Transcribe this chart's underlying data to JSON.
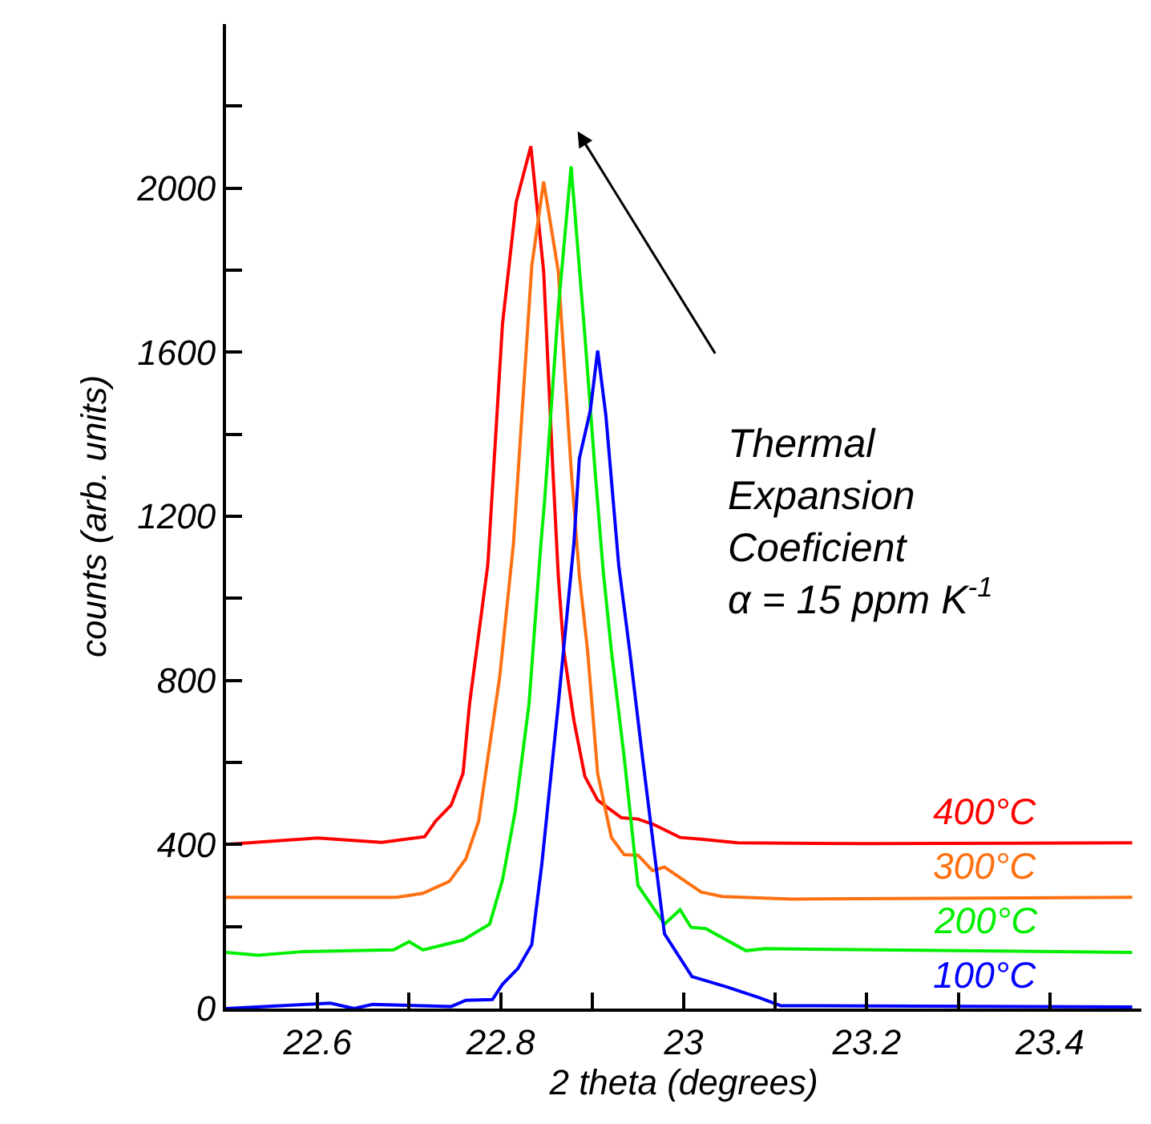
{
  "chart_data": {
    "type": "line",
    "xlabel": "2 theta (degrees)",
    "ylabel": "counts (arb. units)",
    "xlim": [
      22.5,
      23.5
    ],
    "ylim": [
      0,
      2400
    ],
    "xticks": [
      {
        "value": 22.6,
        "label": "22.6"
      },
      {
        "value": 22.7,
        "label": null
      },
      {
        "value": 22.8,
        "label": "22.8"
      },
      {
        "value": 22.9,
        "label": null
      },
      {
        "value": 23.0,
        "label": "23"
      },
      {
        "value": 23.1,
        "label": null
      },
      {
        "value": 23.2,
        "label": "23.2"
      },
      {
        "value": 23.3,
        "label": null
      },
      {
        "value": 23.4,
        "label": "23.4"
      }
    ],
    "yticks": [
      0,
      {
        "value": 200,
        "label": null
      },
      400,
      {
        "value": 600,
        "label": null
      },
      800,
      {
        "value": 1000,
        "label": null
      },
      1200,
      {
        "value": 1400,
        "label": null
      },
      1600,
      {
        "value": 1800,
        "label": null
      },
      2000,
      {
        "value": 2200,
        "label": null
      }
    ],
    "legend": false,
    "marker": "none",
    "line_style": "solid",
    "series": [
      {
        "name": "400°C",
        "color": "#ff0000",
        "x": [
          22.5,
          22.6,
          22.67,
          22.717,
          22.729,
          22.746,
          22.759,
          22.766,
          22.786,
          22.802,
          22.817,
          22.833,
          22.847,
          22.857,
          22.863,
          22.869,
          22.88,
          22.892,
          22.906,
          22.932,
          22.95,
          22.967,
          22.996,
          23.019,
          23.059,
          23.2,
          23.49
        ],
        "values": [
          400,
          416,
          405,
          419,
          457,
          496,
          574,
          742,
          1082,
          1668,
          1966,
          2102,
          1797,
          1316,
          1055,
          872,
          703,
          566,
          508,
          465,
          462,
          449,
          417,
          413,
          404,
          402,
          404
        ]
      },
      {
        "name": "300°C",
        "color": "#ff7010",
        "x": [
          22.5,
          22.686,
          22.715,
          22.744,
          22.762,
          22.776,
          22.799,
          22.814,
          22.834,
          22.847,
          22.863,
          22.877,
          22.886,
          22.895,
          22.906,
          22.921,
          22.935,
          22.95,
          22.966,
          22.979,
          23.019,
          23.042,
          23.118,
          23.49
        ],
        "values": [
          271,
          271,
          281,
          310,
          365,
          457,
          809,
          1133,
          1810,
          2016,
          1797,
          1316,
          1055,
          872,
          573,
          417,
          375,
          374,
          336,
          345,
          284,
          273,
          267,
          271
        ]
      },
      {
        "name": "200°C",
        "color": "#00ee00",
        "x": [
          22.5,
          22.535,
          22.585,
          22.683,
          22.7,
          22.715,
          22.759,
          22.788,
          22.802,
          22.816,
          22.831,
          22.844,
          22.848,
          22.863,
          22.877,
          22.892,
          22.903,
          22.912,
          22.921,
          22.935,
          22.95,
          22.979,
          22.996,
          23.008,
          23.024,
          23.068,
          23.089,
          23.49
        ],
        "values": [
          137,
          130,
          139,
          143,
          163,
          143,
          167,
          206,
          313,
          482,
          742,
          1133,
          1237,
          1706,
          2053,
          1641,
          1316,
          1068,
          872,
          612,
          300,
          206,
          241,
          198,
          195,
          141,
          146,
          137
        ]
      },
      {
        "name": "100°C",
        "color": "#0000ff",
        "x": [
          22.5,
          22.614,
          22.64,
          22.66,
          22.746,
          22.762,
          22.791,
          22.802,
          22.819,
          22.834,
          22.845,
          22.863,
          22.88,
          22.886,
          22.898,
          22.906,
          22.915,
          22.929,
          22.941,
          22.955,
          22.979,
          23.009,
          23.048,
          23.083,
          23.106,
          23.49
        ],
        "values": [
          0,
          13,
          0,
          10,
          5,
          20,
          22,
          59,
          98,
          156,
          352,
          742,
          1133,
          1341,
          1458,
          1604,
          1445,
          1081,
          872,
          612,
          182,
          78,
          52,
          26,
          7,
          4
        ]
      }
    ],
    "annotations": [
      "Thermal\nExpansion\nCoeficient\nα = 15 ppm K$^{-1}$"
    ]
  }
}
